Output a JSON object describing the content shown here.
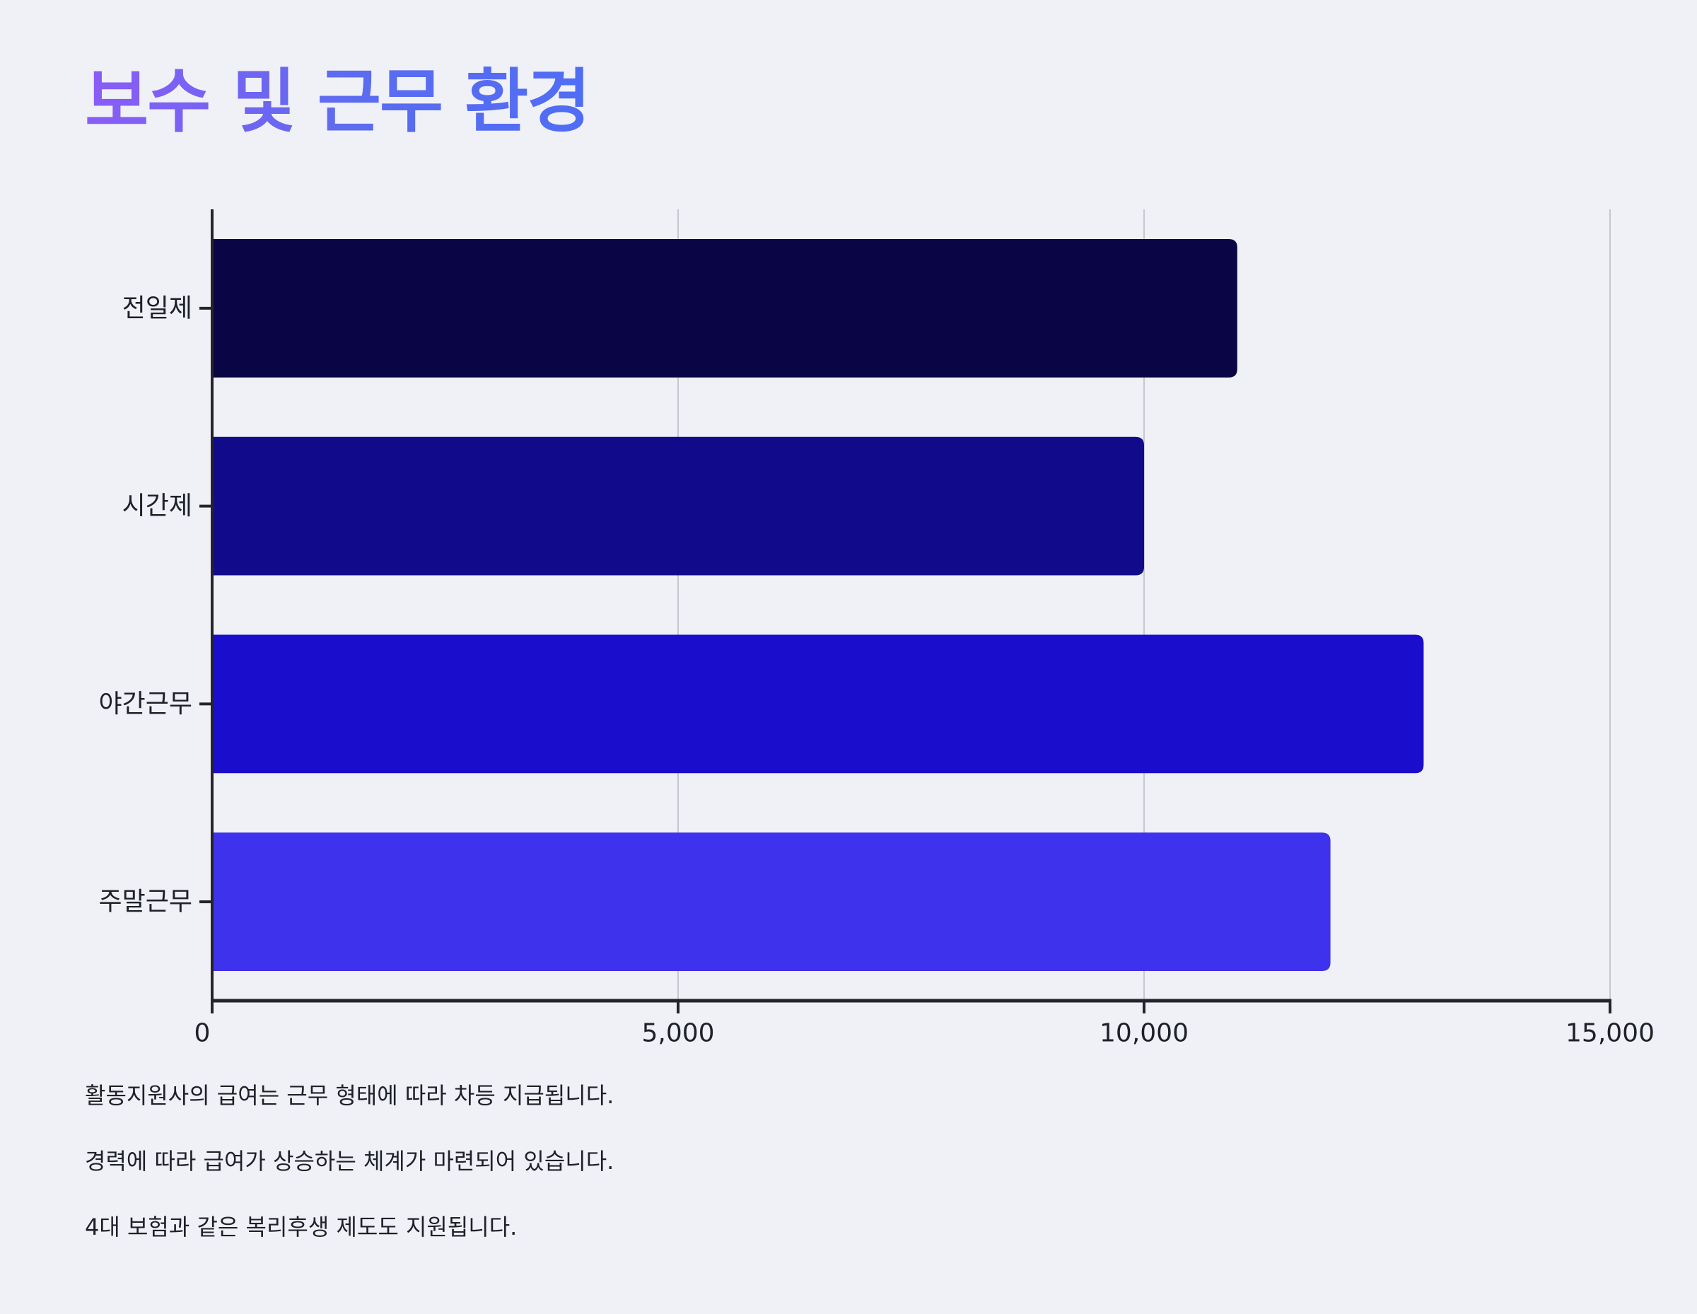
{
  "header": {
    "title": "보수 및 근무 환경"
  },
  "chart_data": {
    "type": "bar",
    "orientation": "horizontal",
    "title": "",
    "xlabel": "",
    "ylabel": "",
    "categories": [
      "전일제",
      "시간제",
      "야간근무",
      "주말근무"
    ],
    "values": [
      11000,
      10000,
      13000,
      12000
    ],
    "xlim": [
      0,
      15000
    ],
    "xticks": [
      0,
      5000,
      10000,
      15000
    ],
    "xtick_labels": [
      "0",
      "5,000",
      "10,000",
      "15,000"
    ],
    "grid": "vertical",
    "colors": [
      "#0a0544",
      "#110b8c",
      "#1a0dcb",
      "#3f32ec"
    ],
    "axis_color": "#24242a",
    "grid_color": "#c6c8d0",
    "label_color": "#1f2129"
  },
  "notes": [
    "활동지원사의 급여는 근무 형태에 따라 차등 지급됩니다.",
    "경력에 따라 급여가 상승하는 체계가 마련되어 있습니다.",
    "4대 보험과 같은 복리후생 제도도 지원됩니다."
  ]
}
